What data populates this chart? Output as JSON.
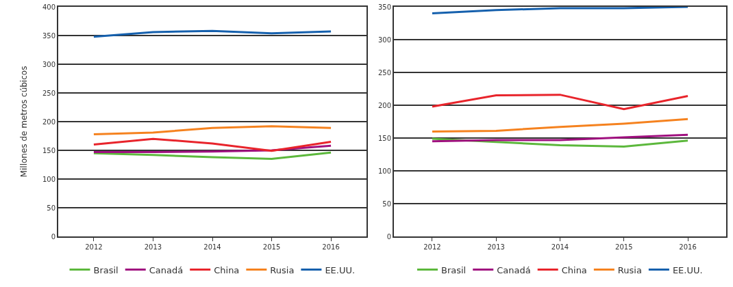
{
  "chart_data": [
    {
      "type": "line",
      "ylabel": "Millones de metros cúbicos",
      "categories": [
        "2012",
        "2013",
        "2014",
        "2015",
        "2016"
      ],
      "ylim": [
        0,
        400
      ],
      "yticks": [
        0,
        50,
        100,
        150,
        200,
        250,
        300,
        350,
        400
      ],
      "grid": "y",
      "legend": "bottom",
      "marker": "none",
      "line_style": "solid",
      "series": [
        {
          "name": "Brasil",
          "color": "#5cb83c",
          "values": [
            145,
            142,
            138,
            135,
            146
          ]
        },
        {
          "name": "Canadá",
          "color": "#a0107f",
          "values": [
            147,
            147,
            148,
            150,
            158
          ]
        },
        {
          "name": "China",
          "color": "#e8242b",
          "values": [
            160,
            170,
            162,
            149,
            165
          ]
        },
        {
          "name": "Rusia",
          "color": "#f5821f",
          "values": [
            178,
            181,
            189,
            192,
            189
          ]
        },
        {
          "name": "EE.UU.",
          "color": "#1560ad",
          "values": [
            348,
            356,
            358,
            354,
            357
          ]
        }
      ]
    },
    {
      "type": "line",
      "categories": [
        "2012",
        "2013",
        "2014",
        "2015",
        "2016"
      ],
      "ylim": [
        0,
        350
      ],
      "yticks": [
        0,
        50,
        100,
        150,
        200,
        250,
        300,
        350
      ],
      "grid": "y",
      "legend": "bottom",
      "marker": "none",
      "line_style": "solid",
      "series": [
        {
          "name": "Brasil",
          "color": "#5cb83c",
          "values": [
            149,
            144,
            139,
            137,
            146
          ]
        },
        {
          "name": "Canadá",
          "color": "#a0107f",
          "values": [
            145,
            147,
            147,
            151,
            155
          ]
        },
        {
          "name": "China",
          "color": "#e8242b",
          "values": [
            198,
            215,
            216,
            194,
            214
          ]
        },
        {
          "name": "Rusia",
          "color": "#f5821f",
          "values": [
            160,
            161,
            167,
            172,
            179
          ]
        },
        {
          "name": "EE.UU.",
          "color": "#1560ad",
          "values": [
            340,
            345,
            348,
            348,
            350
          ]
        }
      ]
    }
  ]
}
